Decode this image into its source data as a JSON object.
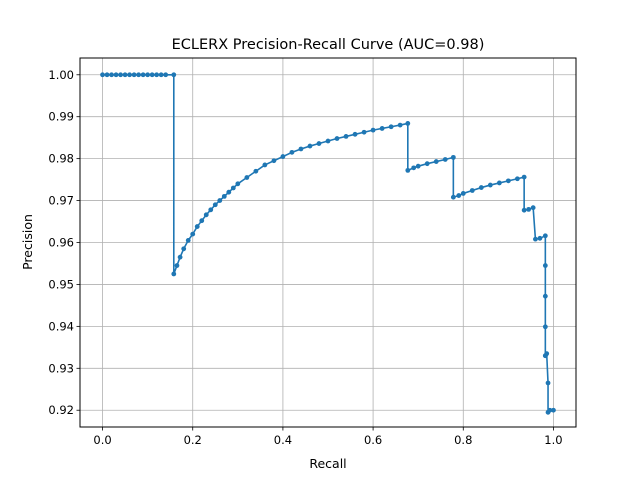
{
  "chart_data": {
    "type": "line",
    "title": "ECLERX Precision-Recall Curve (AUC=0.98)",
    "xlabel": "Recall",
    "ylabel": "Precision",
    "xlim": [
      -0.05,
      1.05
    ],
    "ylim": [
      0.916,
      1.004
    ],
    "x_ticks": [
      0.0,
      0.2,
      0.4,
      0.6,
      0.8,
      1.0
    ],
    "x_tick_labels": [
      "0.0",
      "0.2",
      "0.4",
      "0.6",
      "0.8",
      "1.0"
    ],
    "y_ticks": [
      0.92,
      0.93,
      0.94,
      0.95,
      0.96,
      0.97,
      0.98,
      0.99,
      1.0
    ],
    "y_tick_labels": [
      "0.92",
      "0.93",
      "0.94",
      "0.95",
      "0.96",
      "0.97",
      "0.98",
      "0.99",
      "1.00"
    ],
    "grid": true,
    "color": "#1f77b4",
    "marker": "circle",
    "series": [
      {
        "x": [
          0.0,
          0.01,
          0.02,
          0.03,
          0.04,
          0.05,
          0.06,
          0.07,
          0.08,
          0.09,
          0.1,
          0.11,
          0.12,
          0.13,
          0.14,
          0.158,
          0.158,
          0.165,
          0.172,
          0.18,
          0.19,
          0.2,
          0.21,
          0.22,
          0.23,
          0.24,
          0.25,
          0.26,
          0.27,
          0.28,
          0.29,
          0.3,
          0.32,
          0.34,
          0.36,
          0.38,
          0.4,
          0.42,
          0.44,
          0.46,
          0.48,
          0.5,
          0.52,
          0.54,
          0.56,
          0.58,
          0.6,
          0.62,
          0.64,
          0.66,
          0.677,
          0.677,
          0.69,
          0.7,
          0.72,
          0.74,
          0.76,
          0.778,
          0.778,
          0.79,
          0.8,
          0.82,
          0.84,
          0.86,
          0.88,
          0.9,
          0.92,
          0.935,
          0.935,
          0.945,
          0.955,
          0.96,
          0.97,
          0.982,
          0.982,
          0.982,
          0.982,
          0.982,
          0.982,
          0.985,
          0.988,
          0.988,
          0.992,
          1.0
        ],
        "y": [
          1.0,
          1.0,
          1.0,
          1.0,
          1.0,
          1.0,
          1.0,
          1.0,
          1.0,
          1.0,
          1.0,
          1.0,
          1.0,
          1.0,
          1.0,
          1.0,
          0.9525,
          0.9545,
          0.9565,
          0.9585,
          0.9605,
          0.962,
          0.9638,
          0.9652,
          0.9666,
          0.9678,
          0.969,
          0.97,
          0.971,
          0.972,
          0.973,
          0.974,
          0.9755,
          0.977,
          0.9785,
          0.9795,
          0.9805,
          0.9815,
          0.9823,
          0.983,
          0.9836,
          0.9842,
          0.9848,
          0.9853,
          0.9858,
          0.9863,
          0.9868,
          0.9872,
          0.9876,
          0.988,
          0.9884,
          0.9772,
          0.9778,
          0.9782,
          0.9788,
          0.9793,
          0.9798,
          0.9803,
          0.9708,
          0.9712,
          0.9717,
          0.9724,
          0.9731,
          0.9737,
          0.9742,
          0.9747,
          0.9752,
          0.9756,
          0.9677,
          0.9679,
          0.9683,
          0.9608,
          0.961,
          0.9616,
          0.9545,
          0.9472,
          0.9399,
          0.933,
          0.933,
          0.9335,
          0.9265,
          0.9195,
          0.92,
          0.92
        ]
      }
    ]
  }
}
